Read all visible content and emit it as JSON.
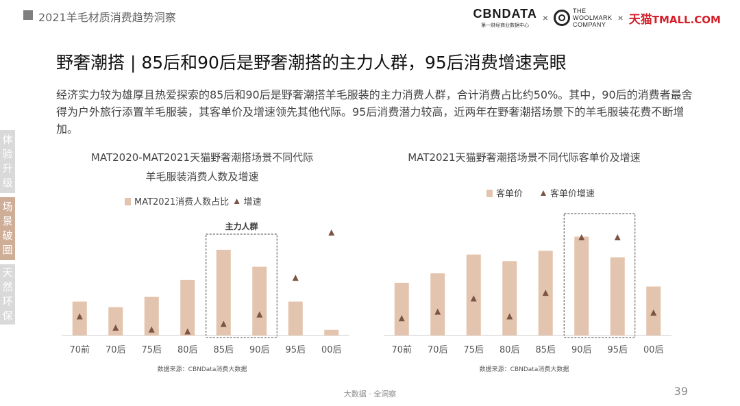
{
  "header": {
    "title": "2021羊毛材质消费趋势洞察"
  },
  "logos": {
    "cbn_main": "CBNDATA",
    "cbn_sub": "第一财经商业数据中心",
    "times": "×",
    "woolmark_line1": "THE",
    "woolmark_line2": "WOOLMARK",
    "woolmark_line3": "COMPANY",
    "tmall_cn": "天猫",
    "tmall_en": "TMALL.COM"
  },
  "main_title": "野奢潮搭 | 85后和90后是野奢潮搭的主力人群，95后消费增速亮眼",
  "description": "经济实力较为雄厚且热爱探索的85后和90后是野奢潮搭羊毛服装的主力消费人群，合计消费占比约50%。其中，90后的消费者最舍得为户外旅行添置羊毛服装，其客单价及增速领先其他代际。95后消费潜力较高，近两年在野奢潮搭场景下的羊毛服装花费不断增加。",
  "side_tabs": [
    {
      "label": [
        "体",
        "验",
        "升",
        "级"
      ]
    },
    {
      "label": [
        "场",
        "景",
        "破",
        "圈"
      ]
    },
    {
      "label": [
        "天",
        "然",
        "环",
        "保"
      ]
    }
  ],
  "colors": {
    "bar": "#e3c4ae",
    "marker": "#7b5444",
    "accent_tab": "#cfae98",
    "axis": "#cccccc"
  },
  "chart_data": [
    {
      "type": "bar",
      "title_lines": [
        "MAT2020-MAT2021天猫野奢潮搭场景不同代际",
        "羊毛服装消费人数及增速"
      ],
      "categories": [
        "70前",
        "70后",
        "75后",
        "80后",
        "85后",
        "90后",
        "95后",
        "00后"
      ],
      "series": [
        {
          "name": "MAT2021消费人数占比",
          "kind": "bar",
          "values": [
            36,
            30,
            41,
            59,
            91,
            73,
            36,
            6
          ]
        },
        {
          "name": "增速",
          "kind": "marker",
          "values": [
            20,
            8,
            6,
            4,
            12,
            22,
            61,
            109
          ]
        }
      ],
      "ylim": [
        0,
        120
      ],
      "highlight": {
        "label": "主力人群",
        "categories": [
          "85后",
          "90后"
        ]
      },
      "source": "数据来源：CBNData消费大数据"
    },
    {
      "type": "bar",
      "title_lines": [
        "MAT2021天猫野奢潮搭场景不同代际客单价及增速"
      ],
      "categories": [
        "70前",
        "70后",
        "75后",
        "80后",
        "85后",
        "90后",
        "95后",
        "00后"
      ],
      "series": [
        {
          "name": "客单价",
          "kind": "bar",
          "values": [
            56,
            66,
            86,
            79,
            90,
            105,
            83,
            52
          ]
        },
        {
          "name": "客单价增速",
          "kind": "marker",
          "values": [
            18,
            25,
            39,
            20,
            45,
            104,
            104,
            24
          ]
        }
      ],
      "ylim": [
        0,
        120
      ],
      "highlight": {
        "label": "",
        "categories": [
          "90后",
          "95后"
        ]
      },
      "source": "数据来源：CBNData消费大数据"
    }
  ],
  "footer": {
    "text": "大数据 · 全洞察",
    "page": "39"
  }
}
